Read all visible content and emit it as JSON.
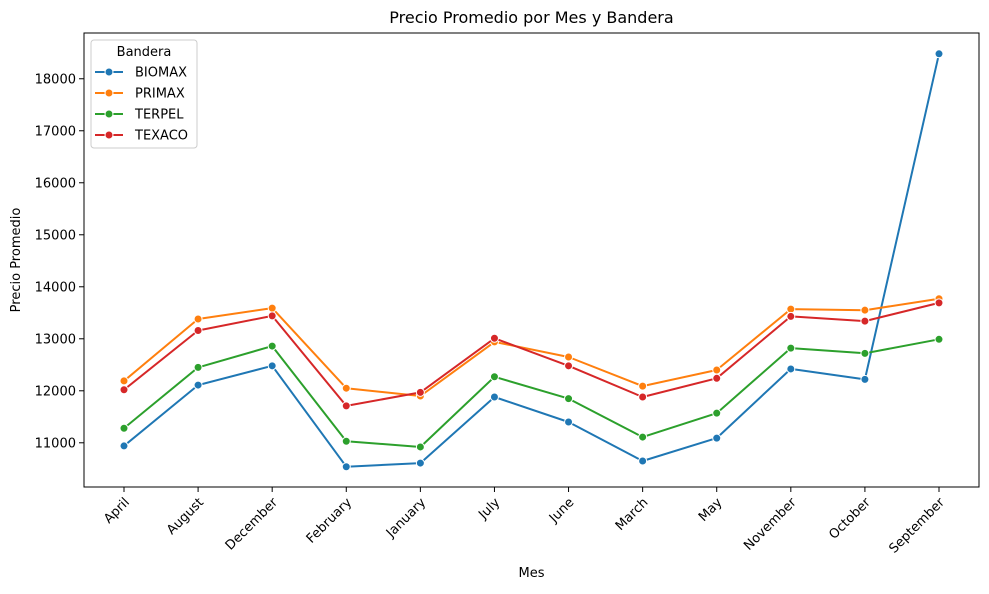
{
  "chart_data": {
    "type": "line",
    "title": "Precio Promedio por Mes y Bandera",
    "xlabel": "Mes",
    "ylabel": "Precio Promedio",
    "categories": [
      "April",
      "August",
      "December",
      "February",
      "January",
      "July",
      "June",
      "March",
      "May",
      "November",
      "October",
      "September"
    ],
    "ylim": [
      10150,
      18880
    ],
    "yticks": [
      11000,
      12000,
      13000,
      14000,
      15000,
      16000,
      17000,
      18000
    ],
    "grid": false,
    "legend": {
      "title": "Bandera",
      "placement": "top-left"
    },
    "series": [
      {
        "name": "BIOMAX",
        "color": "#1f77b4",
        "values": [
          10940,
          12110,
          12480,
          10540,
          10610,
          11880,
          11400,
          10650,
          11090,
          12420,
          12220,
          18480
        ]
      },
      {
        "name": "PRIMAX",
        "color": "#ff7f0e",
        "values": [
          12190,
          13380,
          13590,
          12050,
          11900,
          12940,
          12650,
          12090,
          12400,
          13570,
          13550,
          13770
        ]
      },
      {
        "name": "TERPEL",
        "color": "#2ca02c",
        "values": [
          11280,
          12450,
          12860,
          11030,
          10920,
          12270,
          11850,
          11110,
          11570,
          12820,
          12720,
          12990
        ]
      },
      {
        "name": "TEXACO",
        "color": "#d62728",
        "values": [
          12020,
          13160,
          13440,
          11710,
          11970,
          13010,
          12480,
          11880,
          12240,
          13430,
          13340,
          13690
        ]
      }
    ]
  }
}
